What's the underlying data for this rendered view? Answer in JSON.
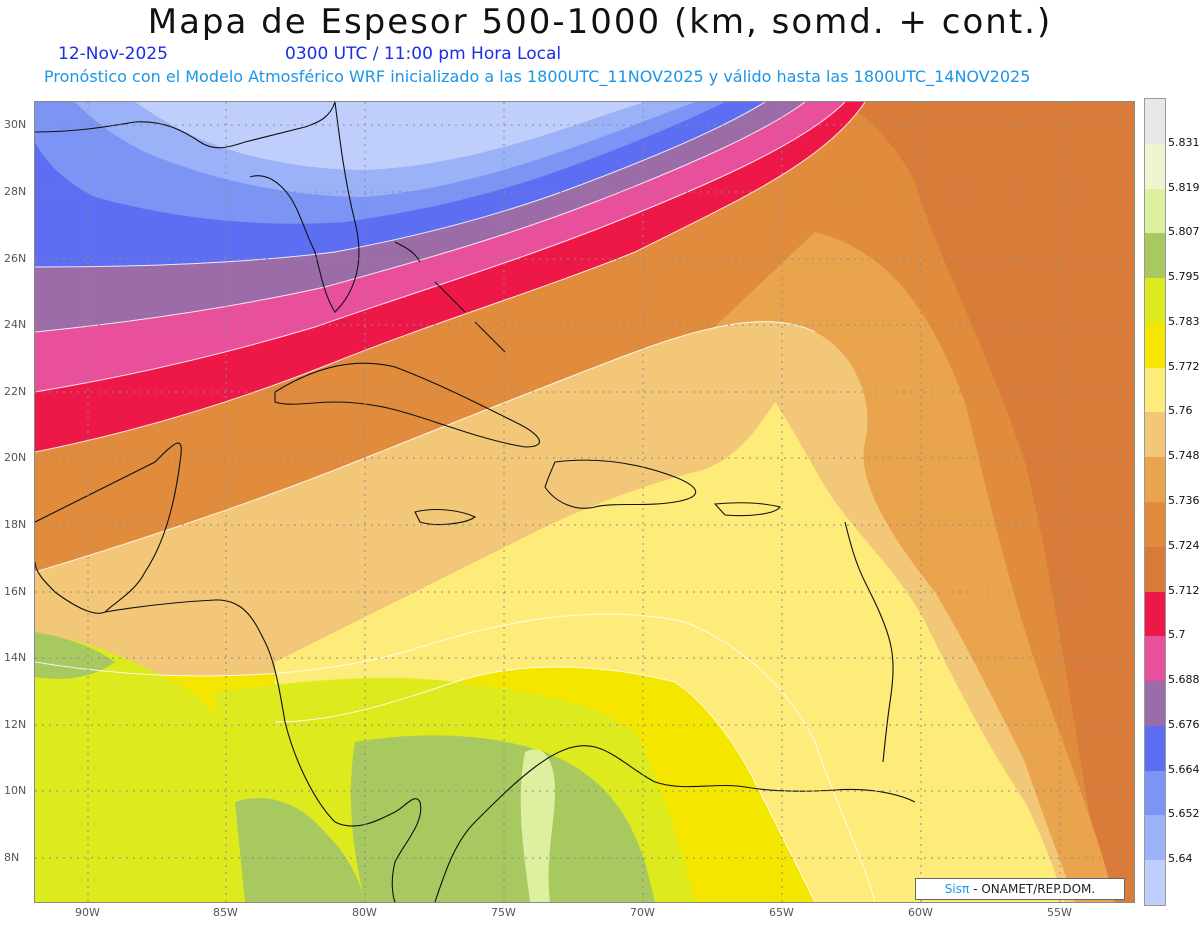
{
  "header": {
    "title": "Mapa de Espesor 500-1000 (km, somd. + cont.)",
    "date": "12-Nov-2025",
    "time": "0300 UTC / 11:00 pm Hora Local",
    "subtitle": "Pronóstico con el Modelo Atmosférico WRF inicializado a las 1800UTC_11NOV2025 y válido hasta las  1800UTC_14NOV2025"
  },
  "axes": {
    "lat_labels": [
      "30N",
      "28N",
      "26N",
      "24N",
      "22N",
      "20N",
      "18N",
      "16N",
      "14N",
      "12N",
      "10N",
      "8N"
    ],
    "lon_labels": [
      "90W",
      "85W",
      "80W",
      "75W",
      "70W",
      "65W",
      "60W",
      "55W"
    ]
  },
  "legend": {
    "values": [
      "5.831",
      "5.819",
      "5.807",
      "5.795",
      "5.783",
      "5.772",
      "5.76",
      "5.748",
      "5.736",
      "5.724",
      "5.712",
      "5.7",
      "5.688",
      "5.676",
      "5.664",
      "5.652",
      "5.64"
    ],
    "colors": [
      "#e8e8e8",
      "#f0f5d0",
      "#dcf0a0",
      "#a8c860",
      "#dcea1e",
      "#f5e600",
      "#fdeb7a",
      "#f2c878",
      "#eba44e",
      "#e08c3c",
      "#d87a38",
      "#ee1848",
      "#e8509c",
      "#9c6ca8",
      "#5e6ef2",
      "#7c94f4",
      "#9cb2f8",
      "#c0cefc"
    ]
  },
  "credit": {
    "brand": "Sisπ",
    "text": "- ONAMET/REP.DOM."
  }
}
